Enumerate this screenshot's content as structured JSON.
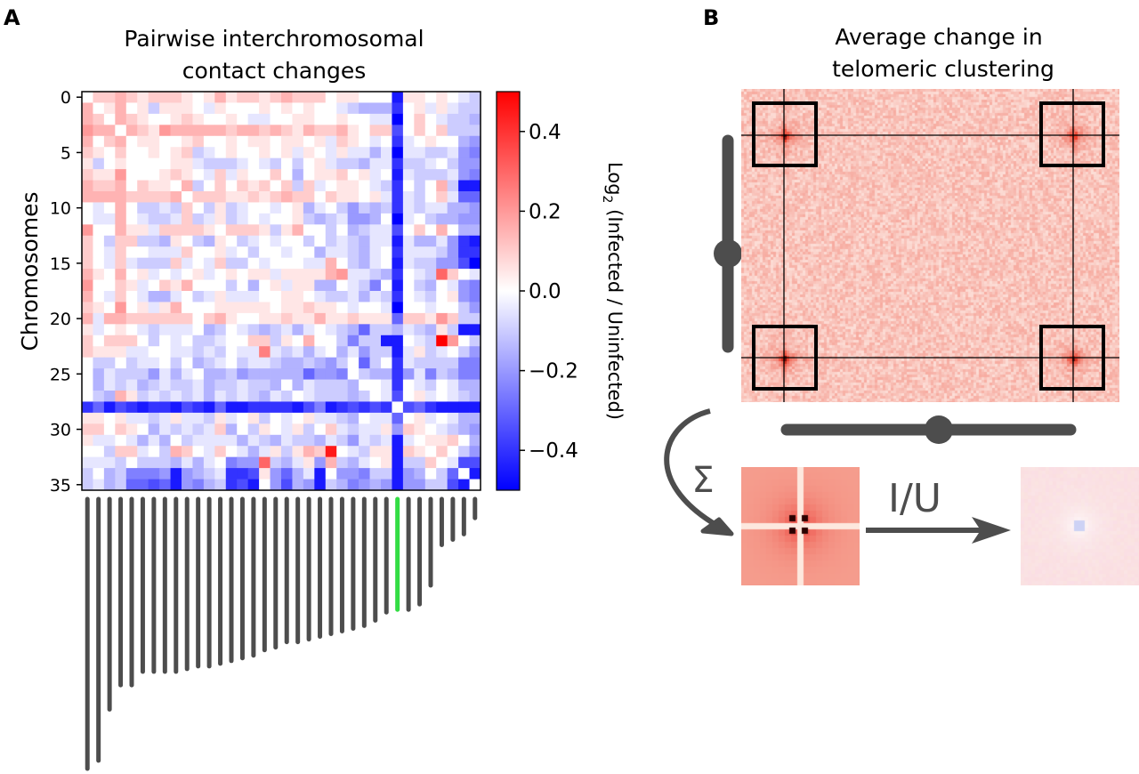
{
  "panel_a": {
    "letter": "A",
    "title_line1": "Pairwise interchromosomal",
    "title_line2": "contact changes",
    "colorbar": {
      "label_prefix": "Log",
      "label_sub": "2",
      "label_rest": " (Infected / Uninfected)",
      "ticks": [
        "0.4",
        "0.2",
        "0.0",
        "−0.2",
        "−0.4"
      ],
      "tick_values": [
        0.4,
        0.2,
        0.0,
        -0.2,
        -0.4
      ]
    }
  },
  "panel_b": {
    "letter": "B",
    "title_line1": "Average change in",
    "title_line2": "telomeric clustering",
    "sum_symbol": "Σ",
    "ratio_label": "I/U"
  },
  "colors": {
    "positive": "#ff0000",
    "zero": "#ffffff",
    "negative": "#0000ff",
    "bar": "#4d4d4d",
    "highlight_bar": "#33dd44"
  },
  "chart_data": {
    "type": "heatmap",
    "title": "Pairwise interchromosomal contact changes",
    "ylabel": "Chromosomes",
    "colorbar_label": "Log2 (Infected / Uninfected)",
    "vmin": -0.5,
    "vmax": 0.5,
    "colormap": "bwr",
    "y_ticks": [
      "0",
      "5",
      "10",
      "15",
      "20",
      "25",
      "30",
      "35"
    ],
    "y_tick_values": [
      0,
      5,
      10,
      15,
      20,
      25,
      30,
      35
    ],
    "highlighted_chromosome": 28,
    "chromosome_relative_lengths": [
      1.0,
      0.97,
      0.78,
      0.69,
      0.69,
      0.64,
      0.64,
      0.64,
      0.64,
      0.63,
      0.62,
      0.62,
      0.61,
      0.6,
      0.59,
      0.58,
      0.56,
      0.55,
      0.53,
      0.53,
      0.52,
      0.51,
      0.5,
      0.49,
      0.48,
      0.47,
      0.45,
      0.42,
      0.41,
      0.41,
      0.39,
      0.32,
      0.17,
      0.15,
      0.13,
      0.07
    ],
    "matrix": [
      [
        0,
        0.1,
        0.1,
        0.15,
        0.1,
        0.05,
        0.1,
        0.1,
        0.1,
        0.05,
        0,
        0.05,
        0.15,
        0.05,
        0.1,
        0.1,
        0.05,
        0.1,
        0.15,
        0.1,
        0.1,
        0.1,
        0,
        0.05,
        0.05,
        0,
        0,
        0,
        -0.45,
        0.05,
        0.05,
        0,
        0.05,
        0,
        -0.05,
        -0.1
      ],
      [
        0.15,
        0,
        0.05,
        0.15,
        0,
        0.05,
        -0.1,
        0.05,
        0.05,
        0.05,
        0,
        -0.05,
        0.05,
        0,
        0,
        0,
        0.05,
        0,
        0.05,
        0,
        0.05,
        0,
        0,
        -0.05,
        -0.1,
        -0.15,
        -0.15,
        -0.15,
        -0.4,
        0,
        0.05,
        -0.05,
        0.05,
        -0.05,
        -0.1,
        -0.1
      ],
      [
        0.15,
        0.1,
        0,
        0.15,
        0.1,
        0.05,
        0,
        0,
        0.05,
        0.1,
        0.05,
        0,
        0,
        0.05,
        0,
        -0.05,
        -0.05,
        0,
        0,
        0.05,
        0.05,
        0,
        0,
        0.05,
        0,
        0,
        -0.05,
        -0.05,
        -0.5,
        0,
        0.1,
        0,
        -0.05,
        -0.1,
        -0.1,
        -0.15
      ],
      [
        0.2,
        0.15,
        0.15,
        0,
        0.15,
        0.1,
        0.05,
        0.2,
        0.15,
        0.15,
        0.15,
        0.15,
        0.15,
        0.1,
        0.15,
        0.15,
        0.1,
        0.15,
        0.1,
        0.05,
        0.15,
        0.1,
        0.1,
        0.15,
        0.05,
        0,
        0.1,
        0.1,
        -0.35,
        0,
        0.1,
        0,
        0.1,
        -0.1,
        -0.1,
        -0.1
      ],
      [
        0.15,
        0,
        0.1,
        0.15,
        0,
        0.05,
        0.05,
        0,
        0,
        0.05,
        0.1,
        0,
        0,
        0.05,
        0,
        0.05,
        0.05,
        0,
        0.05,
        0.05,
        0,
        0.05,
        -0.05,
        0.1,
        0.05,
        0,
        -0.05,
        0,
        -0.4,
        -0.05,
        0,
        0.05,
        0,
        0,
        -0.15,
        -0.2
      ],
      [
        0.1,
        0.05,
        0,
        0.1,
        0,
        0,
        0.05,
        0,
        0.05,
        0.1,
        -0.1,
        -0.05,
        0,
        0.05,
        0,
        0,
        0.05,
        0,
        0.05,
        -0.05,
        0.05,
        0,
        -0.05,
        0.05,
        -0.05,
        -0.05,
        -0.15,
        -0.05,
        -0.5,
        -0.05,
        -0.05,
        -0.1,
        -0.1,
        -0.05,
        -0.2,
        -0.25
      ],
      [
        0.05,
        -0.1,
        0,
        0.05,
        0,
        0,
        0,
        0,
        0.05,
        0.05,
        -0.05,
        -0.1,
        -0.1,
        -0.1,
        -0.05,
        0,
        -0.05,
        -0.1,
        0,
        -0.1,
        0,
        0.05,
        -0.05,
        -0.1,
        -0.1,
        -0.15,
        -0.05,
        -0.05,
        -0.4,
        -0.1,
        -0.1,
        -0.05,
        0,
        -0.1,
        -0.2,
        -0.2
      ],
      [
        0.1,
        0.05,
        0.05,
        0.2,
        0,
        0,
        0,
        0.05,
        0.1,
        0.05,
        0,
        -0.05,
        0.1,
        -0.05,
        0.05,
        0,
        0,
        0.1,
        0,
        -0.15,
        0,
        0.05,
        0.05,
        0.1,
        0,
        0.05,
        -0.05,
        0,
        -0.45,
        -0.05,
        -0.1,
        -0.1,
        -0.1,
        -0.05,
        -0.2,
        -0.25
      ],
      [
        0.15,
        0.1,
        0.1,
        0.15,
        0,
        0.1,
        0.05,
        0.05,
        0,
        0.15,
        -0.1,
        0,
        0.1,
        0,
        0.1,
        0.05,
        0.1,
        0,
        0.1,
        -0.1,
        0.1,
        -0.05,
        0,
        0.05,
        0.05,
        0,
        -0.05,
        -0.1,
        -0.4,
        0,
        -0.1,
        0,
        0.15,
        -0.1,
        -0.45,
        -0.45
      ],
      [
        0.15,
        0.15,
        0.15,
        0.15,
        0.1,
        0.1,
        0.1,
        0.1,
        0.15,
        0,
        0.1,
        0.1,
        0.1,
        0.05,
        0.05,
        0.1,
        0.05,
        0.1,
        0.15,
        0.1,
        0.1,
        0,
        0.1,
        0.05,
        0.05,
        0,
        0.05,
        -0.05,
        -0.4,
        -0.05,
        -0.1,
        0,
        0.1,
        -0.05,
        -0.3,
        -0.3
      ],
      [
        0,
        -0.05,
        0,
        0.15,
        0,
        -0.1,
        -0.1,
        -0.05,
        -0.1,
        0.1,
        0,
        -0.1,
        0.05,
        -0.1,
        -0.05,
        0,
        0,
        -0.05,
        0,
        0.05,
        -0.15,
        -0.05,
        0,
        -0.1,
        -0.2,
        -0.1,
        -0.15,
        -0.1,
        -0.4,
        -0.05,
        -0.1,
        -0.05,
        -0.05,
        -0.15,
        -0.15,
        -0.2
      ],
      [
        0,
        -0.05,
        -0.05,
        0.15,
        0,
        -0.05,
        -0.1,
        -0.1,
        -0.05,
        0.1,
        -0.1,
        -0.05,
        0.05,
        -0.1,
        -0.05,
        0,
        -0.05,
        0,
        0,
        0.05,
        -0.1,
        -0.15,
        -0.1,
        -0.05,
        -0.2,
        -0.2,
        -0.15,
        0,
        -0.5,
        -0.05,
        0,
        -0.1,
        -0.15,
        -0.15,
        -0.2,
        -0.2
      ],
      [
        0.2,
        0,
        0,
        0.15,
        0.05,
        0.05,
        -0.05,
        0.1,
        0.1,
        0.1,
        0.1,
        0.05,
        0,
        0.1,
        0.1,
        0.1,
        0.05,
        -0.1,
        0.05,
        0.15,
        0,
        0,
        -0.1,
        0,
        -0.15,
        -0.1,
        -0.05,
        -0.05,
        -0.35,
        0,
        0.1,
        0,
        0.15,
        0,
        -0.15,
        -0.15
      ],
      [
        0.1,
        0,
        -0.1,
        0.1,
        0.1,
        -0.1,
        -0.1,
        -0.15,
        0.05,
        0,
        -0.1,
        -0.15,
        0.05,
        0,
        -0.1,
        -0.05,
        0,
        -0.05,
        0,
        0,
        -0.1,
        0,
        -0.1,
        -0.05,
        -0.1,
        -0.15,
        -0.05,
        -0.05,
        -0.45,
        -0.05,
        -0.15,
        -0.15,
        -0.05,
        -0.2,
        -0.4,
        -0.45
      ],
      [
        0.1,
        0,
        -0.05,
        0.1,
        0,
        0,
        -0.05,
        -0.05,
        -0.05,
        0.1,
        0,
        0,
        0.05,
        -0.05,
        0,
        -0.1,
        0,
        0,
        -0.05,
        0,
        0,
        -0.15,
        -0.05,
        -0.05,
        -0.1,
        -0.15,
        -0.05,
        0,
        -0.4,
        -0.05,
        -0.05,
        -0.05,
        -0.1,
        -0.2,
        -0.4,
        -0.4
      ],
      [
        0.1,
        0,
        -0.05,
        0.1,
        -0.05,
        -0.1,
        -0.1,
        -0.1,
        0.1,
        -0.05,
        0,
        -0.05,
        0.1,
        -0.1,
        -0.1,
        0,
        -0.05,
        0,
        0,
        0,
        -0.05,
        -0.05,
        0.15,
        0,
        -0.1,
        -0.15,
        -0.05,
        0,
        -0.45,
        -0.05,
        -0.1,
        -0.1,
        -0.2,
        -0.2,
        -0.35,
        -0.5
      ],
      [
        0.15,
        0.05,
        0,
        0.15,
        0,
        0.05,
        -0.05,
        0,
        -0.05,
        0,
        0.05,
        -0.05,
        0,
        0.05,
        0,
        0.05,
        0.05,
        -0.05,
        0.05,
        0.05,
        0.05,
        0.05,
        0.15,
        0.2,
        -0.05,
        -0.05,
        -0.1,
        -0.15,
        -0.4,
        0,
        -0.05,
        -0.1,
        0.3,
        0.1,
        0,
        -0.05
      ],
      [
        0.2,
        0,
        0,
        0.1,
        0.05,
        -0.05,
        0,
        0.1,
        0.05,
        0.15,
        0,
        0,
        0,
        -0.1,
        0,
        -0.15,
        0,
        0.05,
        -0.05,
        0.05,
        0.05,
        -0.15,
        -0.15,
        0,
        -0.05,
        -0.1,
        -0.25,
        0,
        -0.45,
        0,
        -0.1,
        -0.15,
        0,
        -0.05,
        -0.2,
        -0.25
      ],
      [
        0.15,
        0,
        -0.05,
        0.1,
        0,
        -0.05,
        -0.15,
        -0.15,
        -0.05,
        0,
        -0.1,
        -0.05,
        0.05,
        -0.05,
        -0.05,
        -0.05,
        0,
        0,
        0.05,
        0.05,
        0,
        -0.05,
        -0.1,
        -0.1,
        -0.05,
        -0.15,
        -0.05,
        -0.1,
        -0.4,
        0,
        -0.05,
        -0.1,
        0,
        0.05,
        -0.2,
        -0.25
      ],
      [
        0.1,
        0.05,
        0,
        0.2,
        0,
        0.05,
        -0.05,
        0.05,
        0.15,
        0,
        0,
        0,
        0.05,
        0.05,
        0.05,
        0.05,
        0.05,
        0,
        0.05,
        0.05,
        0.1,
        0.05,
        0.05,
        0,
        -0.05,
        0,
        0,
        -0.05,
        -0.5,
        0,
        0,
        -0.05,
        0,
        0,
        -0.1,
        -0.2
      ],
      [
        0.15,
        -0.05,
        0.15,
        0.15,
        0.1,
        0.1,
        0.1,
        0.1,
        0.1,
        0.1,
        0,
        0.1,
        0.15,
        0.05,
        0,
        0,
        0.05,
        0.05,
        0.1,
        0.05,
        0.05,
        0.15,
        0.05,
        0.05,
        0.1,
        0.05,
        0.05,
        0.05,
        -0.3,
        0.1,
        0.1,
        0.05,
        0.2,
        0.1,
        -0.1,
        -0.1
      ],
      [
        0.05,
        -0.05,
        0,
        0.05,
        0,
        -0.05,
        -0.1,
        -0.05,
        -0.05,
        -0.05,
        0,
        -0.15,
        -0.1,
        0,
        -0.05,
        -0.1,
        -0.15,
        -0.1,
        -0.05,
        -0.15,
        -0.05,
        0,
        -0.05,
        -0.1,
        -0.15,
        -0.3,
        -0.1,
        -0.1,
        -0.15,
        -0.05,
        -0.1,
        -0.15,
        0.05,
        -0.1,
        -0.45,
        -0.45
      ],
      [
        0.1,
        0,
        0.1,
        0.1,
        0.1,
        0,
        -0.1,
        0,
        -0.05,
        0,
        -0.1,
        -0.1,
        -0.05,
        0,
        0,
        0.1,
        0.1,
        -0.1,
        0.05,
        0,
        0.15,
        0,
        0,
        -0.1,
        -0.25,
        -0.1,
        -0.1,
        -0.45,
        -0.45,
        0,
        -0.05,
        -0.1,
        0.5,
        0.2,
        0,
        -0.1
      ],
      [
        0.1,
        0.05,
        0.05,
        0.05,
        -0.05,
        -0.05,
        0,
        0,
        -0.05,
        -0.05,
        -0.1,
        -0.05,
        -0.1,
        0,
        -0.05,
        -0.05,
        0.25,
        -0.05,
        -0.1,
        -0.05,
        -0.15,
        -0.05,
        0,
        -0.15,
        -0.05,
        -0.2,
        -0.1,
        -0.1,
        -0.45,
        -0.05,
        0.05,
        -0.1,
        -0.05,
        0,
        -0.1,
        -0.2
      ],
      [
        0,
        -0.1,
        -0.1,
        0,
        -0.1,
        -0.05,
        -0.05,
        0,
        -0.1,
        0,
        -0.15,
        -0.1,
        -0.05,
        0,
        -0.1,
        -0.05,
        -0.05,
        -0.1,
        -0.15,
        -0.15,
        -0.1,
        -0.15,
        -0.2,
        -0.1,
        0,
        -0.3,
        -0.1,
        0,
        -0.4,
        -0.05,
        -0.1,
        -0.1,
        -0.1,
        -0.1,
        -0.25,
        -0.25
      ],
      [
        0,
        -0.15,
        -0.05,
        -0.1,
        -0.1,
        -0.1,
        -0.2,
        -0.05,
        -0.15,
        -0.05,
        0,
        -0.15,
        -0.15,
        -0.1,
        -0.2,
        -0.15,
        -0.15,
        -0.15,
        -0.15,
        -0.15,
        -0.3,
        -0.2,
        -0.2,
        -0.25,
        0,
        -0.1,
        -0.15,
        -0.15,
        -0.4,
        -0.2,
        -0.05,
        -0.25,
        -0.1,
        -0.15,
        -0.25,
        -0.25
      ],
      [
        0,
        -0.15,
        -0.05,
        -0.1,
        -0.05,
        -0.15,
        -0.1,
        -0.05,
        -0.1,
        -0.1,
        -0.05,
        -0.15,
        -0.1,
        -0.1,
        -0.05,
        -0.1,
        -0.1,
        -0.15,
        0,
        -0.15,
        -0.05,
        -0.1,
        -0.1,
        -0.1,
        -0.15,
        0,
        0,
        -0.05,
        -0.4,
        0,
        -0.05,
        -0.1,
        0,
        -0.05,
        -0.15,
        -0.15
      ],
      [
        0,
        -0.1,
        -0.15,
        0.15,
        0.05,
        -0.1,
        -0.05,
        -0.1,
        -0.05,
        -0.1,
        -0.05,
        -0.15,
        -0.05,
        -0.1,
        -0.05,
        -0.1,
        -0.15,
        -0.05,
        -0.1,
        0,
        -0.05,
        -0.1,
        -0.1,
        -0.1,
        -0.15,
        -0.1,
        0,
        -0.05,
        -0.35,
        0,
        0.05,
        -0.05,
        0,
        -0.05,
        -0.1,
        -0.15
      ],
      [
        -0.4,
        -0.3,
        -0.45,
        -0.35,
        -0.4,
        -0.45,
        -0.4,
        -0.4,
        -0.45,
        -0.35,
        -0.4,
        -0.45,
        -0.3,
        -0.45,
        -0.45,
        -0.4,
        -0.4,
        -0.4,
        -0.4,
        -0.45,
        -0.35,
        -0.25,
        -0.45,
        -0.4,
        -0.35,
        -0.4,
        -0.35,
        -0.4,
        0,
        -0.35,
        -0.3,
        -0.4,
        -0.45,
        -0.45,
        -0.45,
        -0.45
      ],
      [
        0.05,
        0.05,
        0,
        0.05,
        -0.05,
        -0.05,
        -0.1,
        -0.05,
        0.05,
        -0.05,
        -0.05,
        -0.1,
        0.05,
        -0.05,
        0,
        0.05,
        -0.1,
        0,
        -0.05,
        0,
        0.05,
        -0.05,
        -0.05,
        -0.1,
        -0.15,
        0,
        -0.05,
        -0.05,
        -0.3,
        0,
        0.05,
        -0.05,
        0,
        -0.05,
        -0.15,
        -0.15
      ],
      [
        0.1,
        0.1,
        0,
        0.1,
        0.05,
        0,
        -0.15,
        -0.05,
        -0.1,
        -0.05,
        -0.1,
        -0.05,
        0.1,
        -0.15,
        0,
        -0.1,
        0.05,
        0,
        -0.05,
        0.05,
        -0.1,
        0,
        0.1,
        -0.05,
        -0.1,
        -0.05,
        -0.05,
        0.05,
        -0.2,
        0.1,
        0.05,
        0,
        -0.05,
        -0.1,
        -0.15,
        -0.2
      ],
      [
        0.05,
        -0.05,
        -0.05,
        0,
        -0.05,
        -0.15,
        -0.05,
        -0.15,
        0,
        -0.1,
        -0.05,
        -0.05,
        -0.05,
        -0.05,
        -0.15,
        -0.05,
        -0.1,
        -0.15,
        -0.05,
        -0.1,
        -0.1,
        -0.15,
        -0.05,
        -0.1,
        -0.2,
        -0.05,
        -0.1,
        -0.05,
        -0.45,
        -0.05,
        0,
        0.05,
        0.05,
        0.1,
        0,
        -0.15
      ],
      [
        0,
        0,
        -0.1,
        0.1,
        0.1,
        -0.05,
        0,
        -0.1,
        0.15,
        0.1,
        0,
        -0.05,
        0.1,
        0,
        -0.05,
        -0.15,
        -0.05,
        0.05,
        -0.1,
        0.05,
        0.15,
        0.1,
        0.45,
        0,
        -0.05,
        -0.1,
        0.05,
        0.05,
        -0.45,
        0.1,
        0.05,
        0,
        0.1,
        0,
        -0.1,
        -0.2
      ],
      [
        -0.05,
        -0.05,
        -0.05,
        -0.1,
        0,
        -0.1,
        -0.1,
        -0.1,
        -0.15,
        -0.05,
        -0.15,
        -0.05,
        0,
        -0.25,
        -0.2,
        -0.2,
        0.3,
        -0.1,
        -0.15,
        -0.05,
        0.05,
        -0.2,
        0.15,
        -0.1,
        -0.15,
        -0.05,
        0,
        0.05,
        -0.45,
        -0.1,
        -0.1,
        0.1,
        0,
        -0.05,
        -0.35,
        -0.35
      ],
      [
        -0.1,
        0,
        -0.15,
        -0.1,
        -0.25,
        -0.25,
        -0.25,
        -0.2,
        -0.45,
        -0.2,
        -0.15,
        -0.1,
        -0.05,
        -0.4,
        -0.4,
        -0.35,
        0.05,
        -0.2,
        -0.3,
        -0.15,
        -0.05,
        -0.45,
        0,
        -0.2,
        -0.2,
        -0.25,
        -0.1,
        -0.1,
        -0.45,
        -0.2,
        -0.15,
        0,
        -0.1,
        -0.3,
        0,
        -0.45
      ],
      [
        -0.1,
        -0.05,
        -0.15,
        -0.1,
        -0.3,
        -0.3,
        -0.35,
        -0.3,
        -0.45,
        -0.2,
        -0.25,
        -0.15,
        -0.1,
        -0.4,
        -0.35,
        -0.45,
        0,
        -0.2,
        -0.35,
        -0.15,
        -0.2,
        -0.45,
        -0.1,
        -0.15,
        -0.25,
        -0.2,
        -0.15,
        -0.2,
        -0.45,
        -0.2,
        -0.2,
        -0.1,
        -0.1,
        -0.35,
        -0.45,
        0
      ]
    ]
  }
}
